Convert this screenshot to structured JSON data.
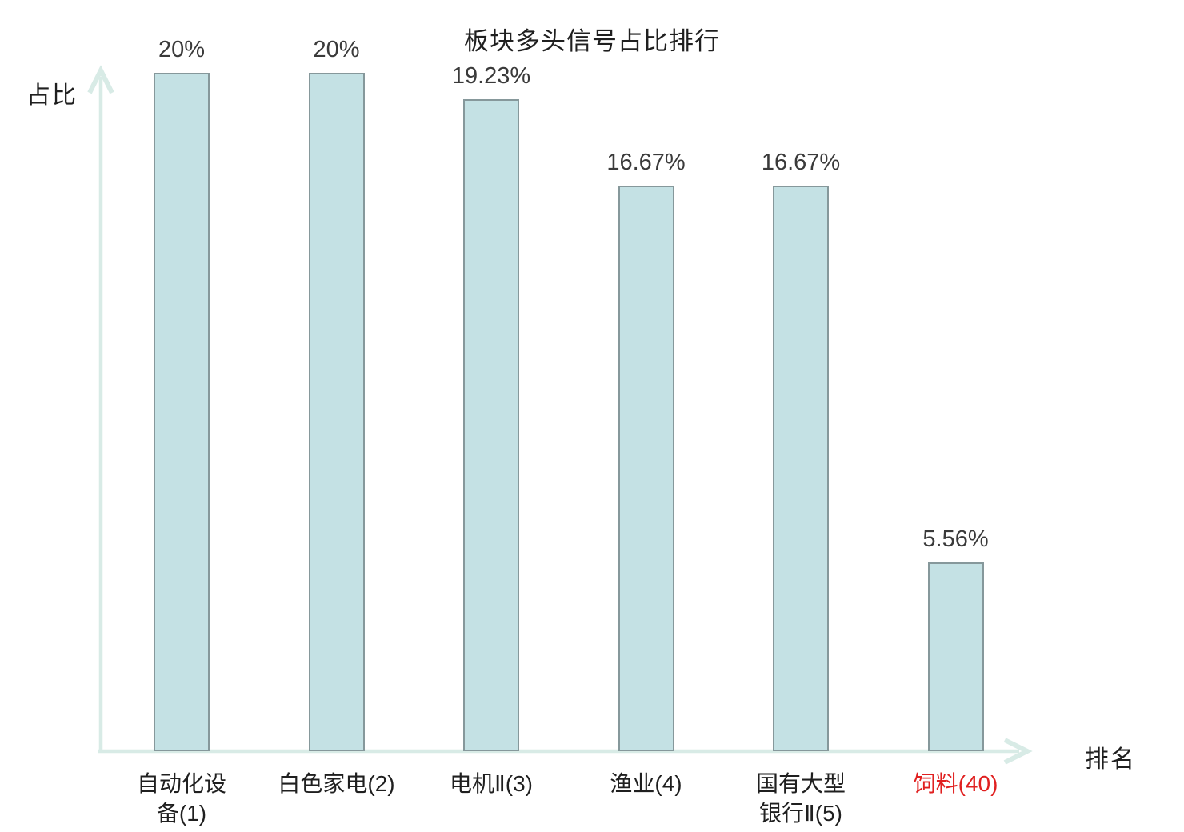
{
  "chart": {
    "title": "板块多头信号占比排行",
    "ylabel": "占比",
    "xlabel": "排名"
  },
  "chart_data": {
    "type": "bar",
    "title": "板块多头信号占比排行",
    "xlabel": "排名",
    "ylabel": "占比",
    "categories": [
      "自动化设备(1)",
      "白色家电(2)",
      "电机Ⅱ(3)",
      "渔业(4)",
      "国有大型银行Ⅱ(5)",
      "饲料(40)"
    ],
    "category_lines": [
      [
        "自动化设",
        "备(1)"
      ],
      [
        "白色家电(2)"
      ],
      [
        "电机Ⅱ(3)"
      ],
      [
        "渔业(4)"
      ],
      [
        "国有大型",
        "银行Ⅱ(5)"
      ],
      [
        "饲料(40)"
      ]
    ],
    "values": [
      20,
      20,
      19.23,
      16.67,
      16.67,
      5.56
    ],
    "value_labels": [
      "20%",
      "20%",
      "19.23%",
      "16.67%",
      "16.67%",
      "5.56%"
    ],
    "highlighted_index": 5,
    "ylim": [
      0,
      20
    ],
    "grid": false,
    "legend": "none",
    "colors": {
      "bar_fill": "#c4e1e4",
      "bar_border": "#86989b",
      "axis": "#d8ebe6",
      "value_text": "#3a3a3a",
      "category_text": "#1f1f1f",
      "highlight_text": "#e02020",
      "background": "#ffffff"
    }
  }
}
